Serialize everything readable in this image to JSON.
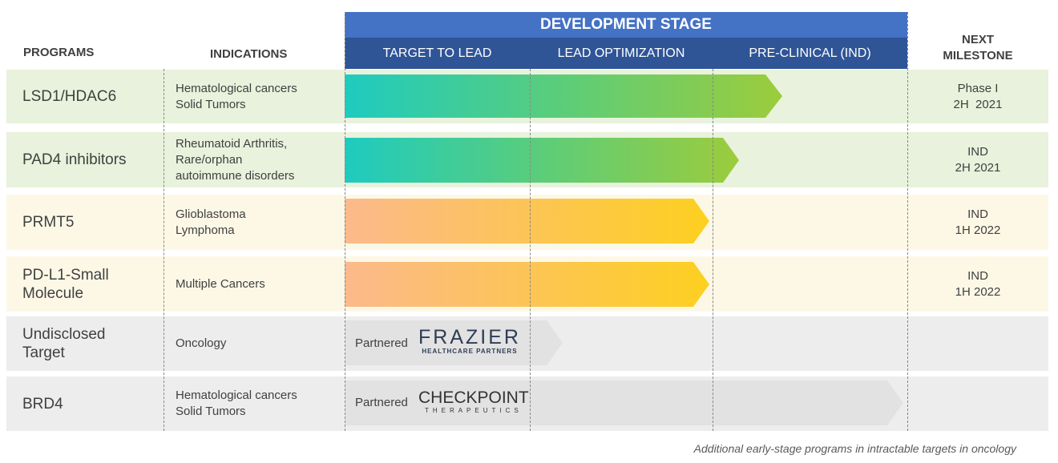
{
  "headers": {
    "programs": "PROGRAMS",
    "indications": "INDICATIONS",
    "development_stage": "DEVELOPMENT STAGE",
    "next_milestone_1": "NEXT",
    "next_milestone_2": "MILESTONE"
  },
  "stages": [
    "TARGET TO LEAD",
    "LEAD OPTIMIZATION",
    "PRE-CLINICAL (IND)"
  ],
  "rows": [
    {
      "program": "LSD1/HDAC6",
      "indications": [
        "Hematological cancers",
        "Solid Tumors"
      ],
      "milestone": [
        "Phase I",
        "2H  2021"
      ]
    },
    {
      "program": "PAD4 inhibitors",
      "indications": [
        "Rheumatoid Arthritis,",
        "Rare/orphan",
        "autoimmune disorders"
      ],
      "milestone": [
        "IND",
        "2H 2021"
      ]
    },
    {
      "program": "PRMT5",
      "indications": [
        "Glioblastoma",
        "Lymphoma"
      ],
      "milestone": [
        "IND",
        "1H 2022"
      ]
    },
    {
      "program": [
        "PD-L1-Small",
        "Molecule"
      ],
      "indications": [
        "Multiple Cancers"
      ],
      "milestone": [
        "IND",
        "1H 2022"
      ]
    },
    {
      "program": [
        "Undisclosed",
        "Target"
      ],
      "indications": [
        "Oncology"
      ],
      "partner_label": "Partnered",
      "partner_logo": [
        "FRAZIER",
        "HEALTHCARE PARTNERS"
      ]
    },
    {
      "program": "BRD4",
      "indications": [
        "Hematological cancers",
        "Solid Tumors"
      ],
      "partner_label": "Partnered",
      "partner_logo": [
        "CHECKPOINT",
        "THERAPEUTICS"
      ]
    }
  ],
  "colors": {
    "header_blue": "#4472c4",
    "subheader_blue": "#2f5597",
    "row_green": "#e8f2dc",
    "row_yellow": "#fdf8e6",
    "row_gray": "#ededed"
  },
  "footnote": "Additional early-stage programs in intractable targets in oncology"
}
